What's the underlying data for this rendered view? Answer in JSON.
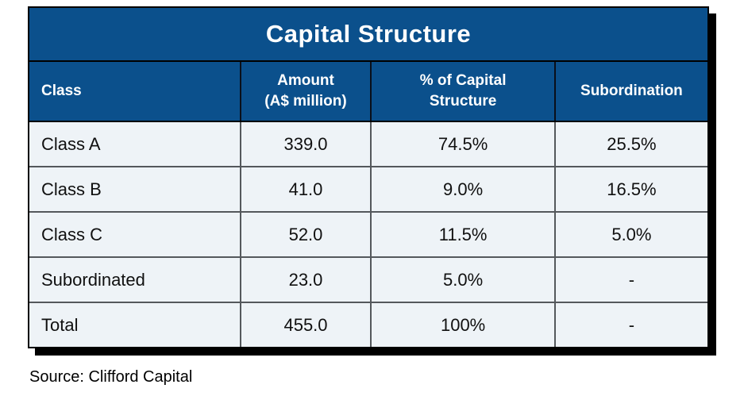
{
  "colors": {
    "header_bg": "#0B508C",
    "header_text": "#FFFFFF",
    "row_bg": "#EEF3F7",
    "grid_line": "#54585C",
    "outer_border": "#000000",
    "shadow": "#000000"
  },
  "chart_data": {
    "type": "table",
    "title": "Capital Structure",
    "columns": [
      "Class",
      "Amount\n(A$ million)",
      "% of Capital\nStructure",
      "Subordination"
    ],
    "rows": [
      [
        "Class A",
        "339.0",
        "74.5%",
        "25.5%"
      ],
      [
        "Class B",
        "41.0",
        "9.0%",
        "16.5%"
      ],
      [
        "Class C",
        "52.0",
        "11.5%",
        "5.0%"
      ],
      [
        "Subordinated",
        "23.0",
        "5.0%",
        "-"
      ],
      [
        "Total",
        "455.0",
        "100%",
        "-"
      ]
    ],
    "source_note": "Source: Clifford Capital"
  }
}
